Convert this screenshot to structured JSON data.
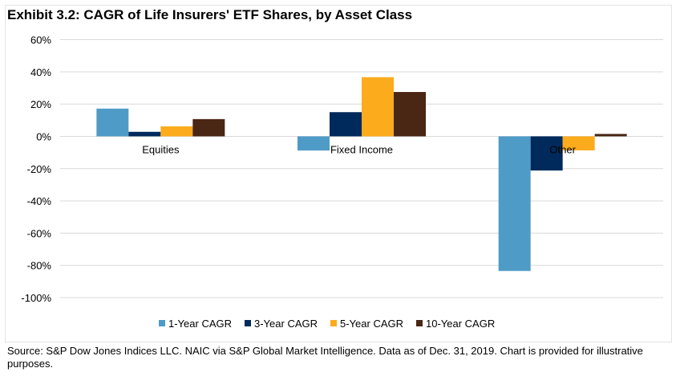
{
  "chart_data": {
    "type": "bar",
    "title": "Exhibit 3.2: CAGR of Life Insurers' ETF Shares, by Asset Class",
    "categories": [
      "Equities",
      "Fixed Income",
      "Other"
    ],
    "series": [
      {
        "name": "1-Year CAGR",
        "color": "#4f9bc7",
        "values": [
          17.2,
          -8.8,
          -83.5
        ]
      },
      {
        "name": "3-Year CAGR",
        "color": "#002a5c",
        "values": [
          2.8,
          15.0,
          -21.2
        ]
      },
      {
        "name": "5-Year CAGR",
        "color": "#fcab1d",
        "values": [
          6.2,
          36.7,
          -8.7
        ]
      },
      {
        "name": "10-Year CAGR",
        "color": "#4a2615",
        "values": [
          10.7,
          27.5,
          1.5
        ]
      }
    ],
    "ylim": [
      -100,
      60
    ],
    "yticks": [
      "60%",
      "40%",
      "20%",
      "0%",
      "-20%",
      "-40%",
      "-60%",
      "-80%",
      "-100%"
    ],
    "ytick_values": [
      60,
      40,
      20,
      0,
      -20,
      -40,
      -60,
      -80,
      -100
    ],
    "grid": true,
    "legend": "bottom",
    "xlabel": "",
    "ylabel": ""
  },
  "source": "Source: S&P Dow Jones Indices LLC. NAIC via S&P Global Market Intelligence. Data as of Dec. 31, 2019. Chart is provided for illustrative purposes."
}
